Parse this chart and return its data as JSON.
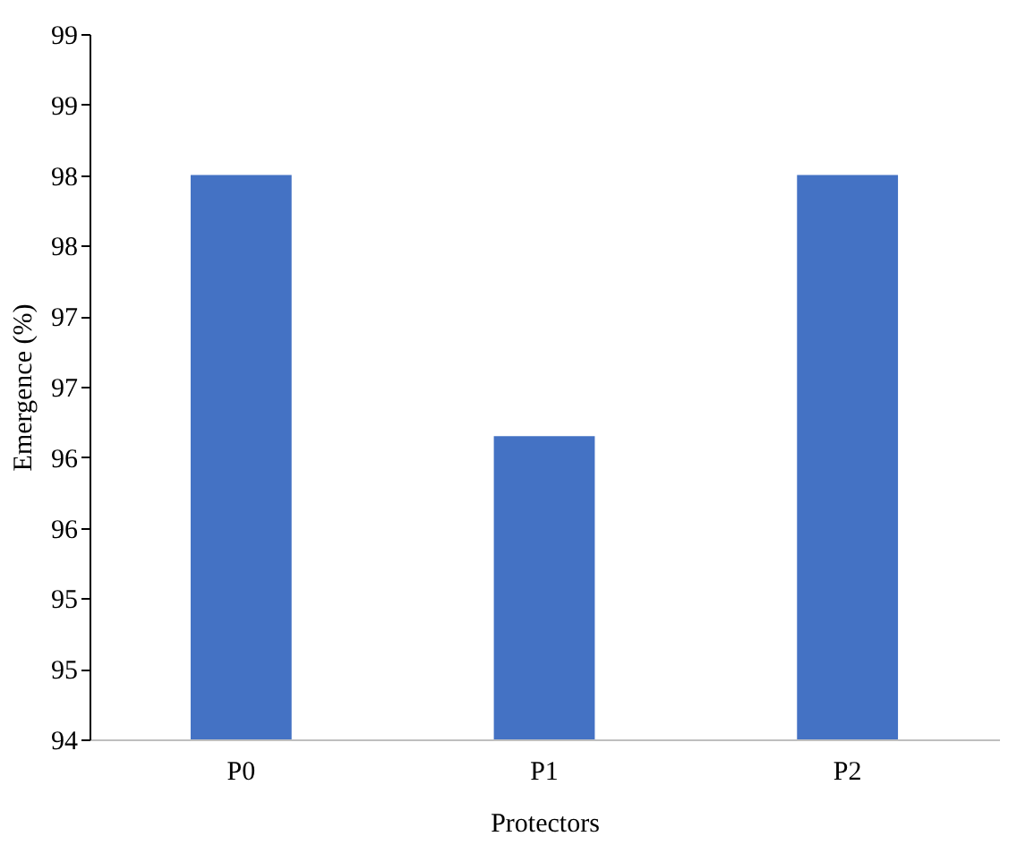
{
  "chart_data": {
    "type": "bar",
    "xlabel": "Protectors",
    "ylabel": "Emergence (%)",
    "categories": [
      "P0",
      "P1",
      "P2"
    ],
    "values": [
      98.0,
      96.15,
      98.0
    ],
    "color": "#4472c4",
    "ylim": [
      94,
      99
    ],
    "yticks": [
      94,
      {
        "value": 94.5,
        "label": "95"
      },
      95,
      {
        "value": 95.5,
        "label": "96"
      },
      96,
      {
        "value": 96.5,
        "label": "97"
      },
      97,
      {
        "value": 97.5,
        "label": "98"
      },
      98,
      {
        "value": 98.5,
        "label": "99"
      },
      99
    ],
    "grid": false
  }
}
